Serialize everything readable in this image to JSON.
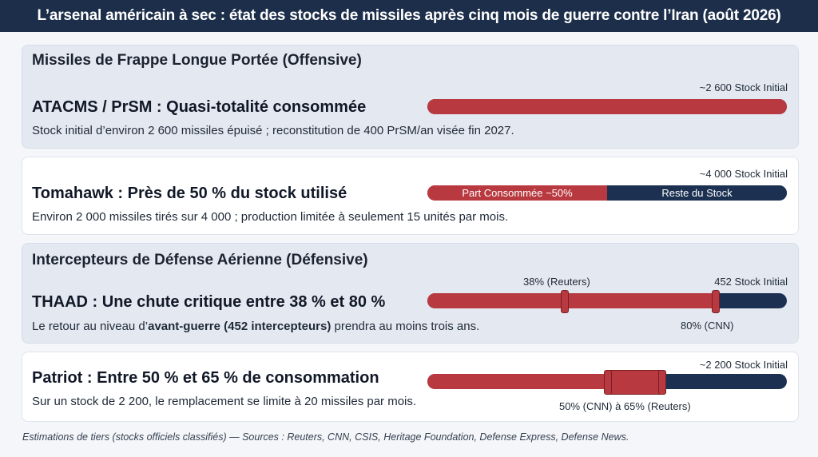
{
  "title": "L’arsenal américain à sec : état des stocks de missiles après cinq mois de guerre contre l’Iran (août 2026)",
  "colors": {
    "consumed": "#b8393f",
    "remaining": "#1c3152",
    "header": "#1c2e4a"
  },
  "offensive": {
    "section_title": "Missiles de Frappe Longue Portée (Offensive)",
    "atacms": {
      "title": "ATACMS / PrSM : Quasi-totalité consommée",
      "description": "Stock initial d’environ 2 600 missiles épuisé ; reconstitution de 400 PrSM/an visée fin 2027.",
      "stock_label": "~2 600 Stock Initial"
    },
    "tomahawk": {
      "title": "Tomahawk : Près de 50 % du stock utilisé",
      "description": "Environ 2 000 missiles tirés sur 4 000 ; production limitée à seulement 15 unités par mois.",
      "stock_label": "~4 000 Stock Initial",
      "consumed_label": "Part Consommée ~50%",
      "remaining_label": "Reste du Stock"
    }
  },
  "defensive": {
    "section_title": "Intercepteurs de Défense Aérienne (Défensive)",
    "thaad": {
      "title": "THAAD : Une chute critique entre 38 % et 80 %",
      "description_pre": "Le retour au niveau d’",
      "description_bold": "avant-guerre (452 intercepteurs)",
      "description_post": " prendra au moins trois ans.",
      "stock_label": "452 Stock Initial",
      "low_label": "38% (Reuters)",
      "high_label": "80% (CNN)"
    },
    "patriot": {
      "title": "Patriot : Entre 50 % et 65 % de consommation",
      "description": "Sur un stock de 2 200, le remplacement se limite à 20 missiles par mois.",
      "stock_label": "~2 200 Stock Initial",
      "range_label": "50% (CNN) à 65% (Reuters)"
    }
  },
  "footer": "Estimations de tiers (stocks officiels classifiés) — Sources : Reuters, CNN, CSIS, Heritage Foundation, Defense Express, Defense News.",
  "chart_data": [
    {
      "type": "bar",
      "category": "ATACMS / PrSM",
      "initial_stock": 2600,
      "consumed_fraction": 1.0
    },
    {
      "type": "bar",
      "category": "Tomahawk",
      "initial_stock": 4000,
      "consumed_fraction": 0.5,
      "series": [
        {
          "name": "Part Consommée ~50%",
          "value": 0.5
        },
        {
          "name": "Reste du Stock",
          "value": 0.5
        }
      ]
    },
    {
      "type": "bar",
      "category": "THAAD",
      "initial_stock": 452,
      "consumed_range": [
        0.38,
        0.8
      ],
      "range_sources": [
        "Reuters",
        "CNN"
      ]
    },
    {
      "type": "bar",
      "category": "Patriot",
      "initial_stock": 2200,
      "consumed_range": [
        0.5,
        0.65
      ],
      "range_sources": [
        "CNN",
        "Reuters"
      ]
    }
  ]
}
